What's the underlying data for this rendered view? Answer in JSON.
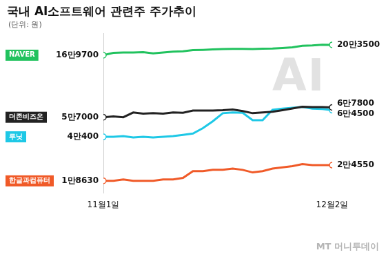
{
  "chart_data": {
    "type": "line",
    "title": "국내 AI소프트웨어 관련주 주가추이",
    "subtitle": "(단위: 원)",
    "annotations": [
      "AI"
    ],
    "source": "MT 머니투데이",
    "categories": [
      "11월1일",
      null,
      null,
      null,
      null,
      null,
      null,
      null,
      null,
      null,
      null,
      null,
      null,
      null,
      null,
      null,
      null,
      null,
      null,
      null,
      null,
      null,
      null,
      "12월2일"
    ],
    "series": [
      {
        "name": "NAVER",
        "color": "#21c25e",
        "values": [
          169700,
          176600,
          178000,
          178000,
          179000,
          175100,
          178000,
          180500,
          181500,
          185400,
          186400,
          187800,
          188800,
          189800,
          189800,
          188800,
          190300,
          190800,
          192700,
          194700,
          200100,
          201600,
          204000,
          203500
        ],
        "value_labels": [
          "16만9700",
          null,
          null,
          null,
          null,
          null,
          null,
          null,
          null,
          null,
          null,
          null,
          null,
          null,
          null,
          null,
          null,
          null,
          null,
          null,
          null,
          null,
          null,
          "20만3500"
        ]
      },
      {
        "name": "더존비즈온",
        "color": "#222222",
        "values": [
          57000,
          57800,
          57000,
          62000,
          60700,
          61200,
          60700,
          62000,
          61600,
          64100,
          64100,
          64100,
          64500,
          65300,
          63600,
          61200,
          62000,
          62800,
          64500,
          66500,
          68600,
          68200,
          68200,
          67800
        ],
        "value_labels": [
          "5만7000",
          null,
          null,
          null,
          null,
          null,
          null,
          null,
          null,
          null,
          null,
          null,
          null,
          null,
          null,
          null,
          null,
          null,
          null,
          null,
          null,
          null,
          null,
          "6만7800"
        ]
      },
      {
        "name": "루닛",
        "color": "#1ec8e6",
        "values": [
          40400,
          40400,
          40900,
          39900,
          40400,
          39900,
          40400,
          40900,
          41800,
          42800,
          47000,
          53100,
          61200,
          62100,
          61600,
          54100,
          54100,
          65000,
          66400,
          67300,
          68300,
          66400,
          65900,
          64500
        ],
        "value_labels": [
          "4만400",
          null,
          null,
          null,
          null,
          null,
          null,
          null,
          null,
          null,
          null,
          null,
          null,
          null,
          null,
          null,
          null,
          null,
          null,
          null,
          null,
          null,
          null,
          "6만4500"
        ]
      },
      {
        "name": "한글과컴퓨터",
        "color": "#f05a28",
        "values": [
          18630,
          18630,
          19100,
          18630,
          18630,
          18630,
          19100,
          19100,
          19600,
          22100,
          22100,
          22600,
          22600,
          23100,
          22600,
          21600,
          22100,
          23100,
          23600,
          24100,
          25000,
          24550,
          24550,
          24550
        ],
        "value_labels": [
          "1만8630",
          null,
          null,
          null,
          null,
          null,
          null,
          null,
          null,
          null,
          null,
          null,
          null,
          null,
          null,
          null,
          null,
          null,
          null,
          null,
          null,
          null,
          null,
          "2만4550"
        ]
      }
    ],
    "ylim": [
      15000,
      250000
    ],
    "log": "y",
    "grid": false,
    "tick_labels": "x",
    "marker": "circle"
  }
}
